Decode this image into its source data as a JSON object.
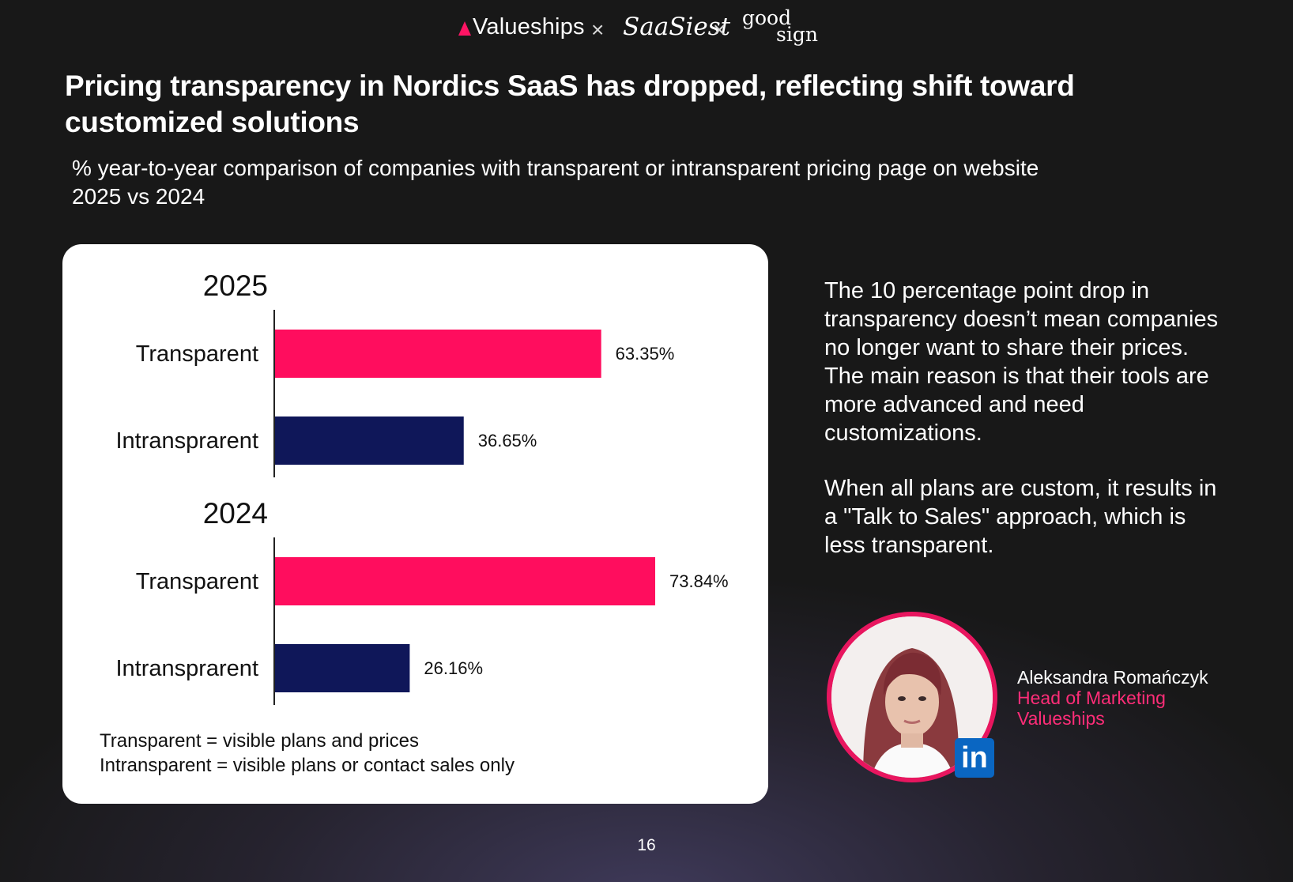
{
  "header": {
    "logo_valueships": "Valueships",
    "separator": "×",
    "logo_saasiest": "SaaSiest",
    "logo_goodsign_top": "good",
    "logo_goodsign_bottom": "sign"
  },
  "title": "Pricing transparency in Nordics SaaS has dropped, reflecting shift toward customized solutions",
  "subtitle": {
    "line1": "% year-to-year comparison of companies with transparent or intransparent pricing page on website",
    "line2": "2025 vs 2024"
  },
  "colors": {
    "transparent": "#ff0d5e",
    "intransparent": "#0f1759",
    "accent": "#e8165f"
  },
  "chart_data": {
    "type": "bar",
    "orientation": "horizontal",
    "groups": [
      {
        "name": "2025",
        "categories": [
          "Transparent",
          "Intransprarent"
        ],
        "values": [
          63.35,
          36.65
        ],
        "labels": [
          "63.35%",
          "36.65%"
        ]
      },
      {
        "name": "2024",
        "categories": [
          "Transparent",
          "Intransprarent"
        ],
        "values": [
          73.84,
          26.16
        ],
        "labels": [
          "73.84%",
          "26.16%"
        ]
      }
    ],
    "grid": false,
    "legend": "none"
  },
  "notes": {
    "line1": "Transparent = visible plans and prices",
    "line2": "Intransparent = visible plans or contact sales only"
  },
  "commentary": {
    "p1": "The 10 percentage point drop in transparency doesn’t mean companies no longer want to share their prices. The main reason is that their tools are more advanced and need customizations.",
    "p2": "When all plans are custom, it results in a \"Talk to Sales\" approach, which is less transparent."
  },
  "person": {
    "name": "Aleksandra Romańczyk",
    "role": "Head of Marketing",
    "company": "Valueships",
    "badge": "in",
    "badge_icon": "linkedin-icon"
  },
  "page_number": "16"
}
